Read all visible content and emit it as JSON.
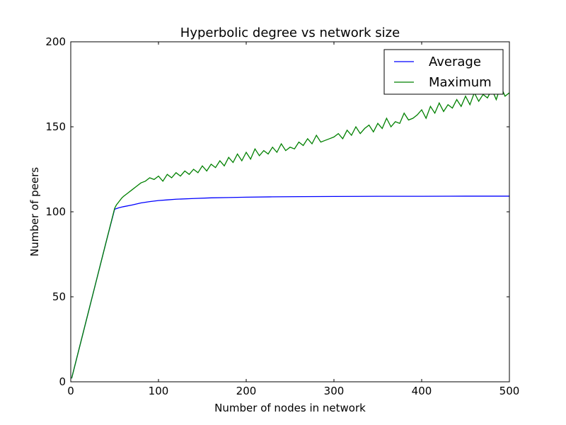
{
  "chart_data": {
    "type": "line",
    "title": "Hyperbolic degree vs network size",
    "xlabel": "Number of nodes in network",
    "ylabel": "Number of peers",
    "xlim": [
      0,
      500
    ],
    "ylim": [
      0,
      200
    ],
    "xticks": [
      0,
      100,
      200,
      300,
      400,
      500
    ],
    "yticks": [
      0,
      50,
      100,
      150,
      200
    ],
    "grid": false,
    "legend_position": "top-right",
    "series": [
      {
        "name": "Average",
        "color": "#0000ff",
        "x": [
          1,
          10,
          20,
          30,
          40,
          50,
          55,
          60,
          70,
          80,
          90,
          100,
          110,
          120,
          140,
          160,
          180,
          200,
          230,
          260,
          300,
          350,
          400,
          450,
          500
        ],
        "y": [
          2,
          20.4,
          40.8,
          61.2,
          81.6,
          101.5,
          102.4,
          103,
          104,
          105.2,
          106,
          106.6,
          107,
          107.4,
          107.8,
          108.2,
          108.4,
          108.6,
          108.8,
          108.9,
          109,
          109.1,
          109.1,
          109.2,
          109.2
        ]
      },
      {
        "name": "Maximum",
        "color": "#008000",
        "x": [
          1,
          10,
          20,
          30,
          40,
          50,
          52,
          55,
          58,
          60,
          65,
          70,
          75,
          80,
          85,
          90,
          95,
          100,
          105,
          110,
          115,
          120,
          125,
          130,
          135,
          140,
          145,
          150,
          155,
          160,
          165,
          170,
          175,
          180,
          185,
          190,
          195,
          200,
          205,
          210,
          215,
          220,
          225,
          230,
          235,
          240,
          245,
          250,
          255,
          260,
          265,
          270,
          275,
          280,
          285,
          290,
          295,
          300,
          305,
          310,
          315,
          320,
          325,
          330,
          335,
          340,
          345,
          350,
          355,
          360,
          365,
          370,
          375,
          380,
          385,
          390,
          395,
          400,
          405,
          410,
          415,
          420,
          425,
          430,
          435,
          440,
          445,
          450,
          455,
          460,
          465,
          470,
          475,
          480,
          485,
          490,
          495,
          500
        ],
        "y": [
          2,
          20.4,
          40.8,
          61.2,
          81.6,
          102,
          104,
          106,
          108,
          109,
          111,
          113,
          115,
          117,
          118,
          120,
          119,
          121,
          118,
          122,
          120,
          123,
          121,
          124,
          122,
          125,
          123,
          127,
          124,
          128,
          126,
          130,
          127,
          132,
          129,
          134,
          130,
          135,
          131,
          137,
          133,
          136,
          134,
          138,
          135,
          140,
          136,
          138,
          137,
          141,
          139,
          143,
          140,
          145,
          141,
          142,
          143,
          144,
          146,
          143,
          148,
          145,
          150,
          146,
          149,
          151,
          147,
          152,
          149,
          155,
          150,
          153,
          152,
          158,
          154,
          155,
          157,
          160,
          155,
          162,
          158,
          164,
          159,
          163,
          161,
          166,
          162,
          168,
          163,
          170,
          165,
          169,
          167,
          172,
          166,
          174,
          168,
          170
        ]
      }
    ]
  }
}
